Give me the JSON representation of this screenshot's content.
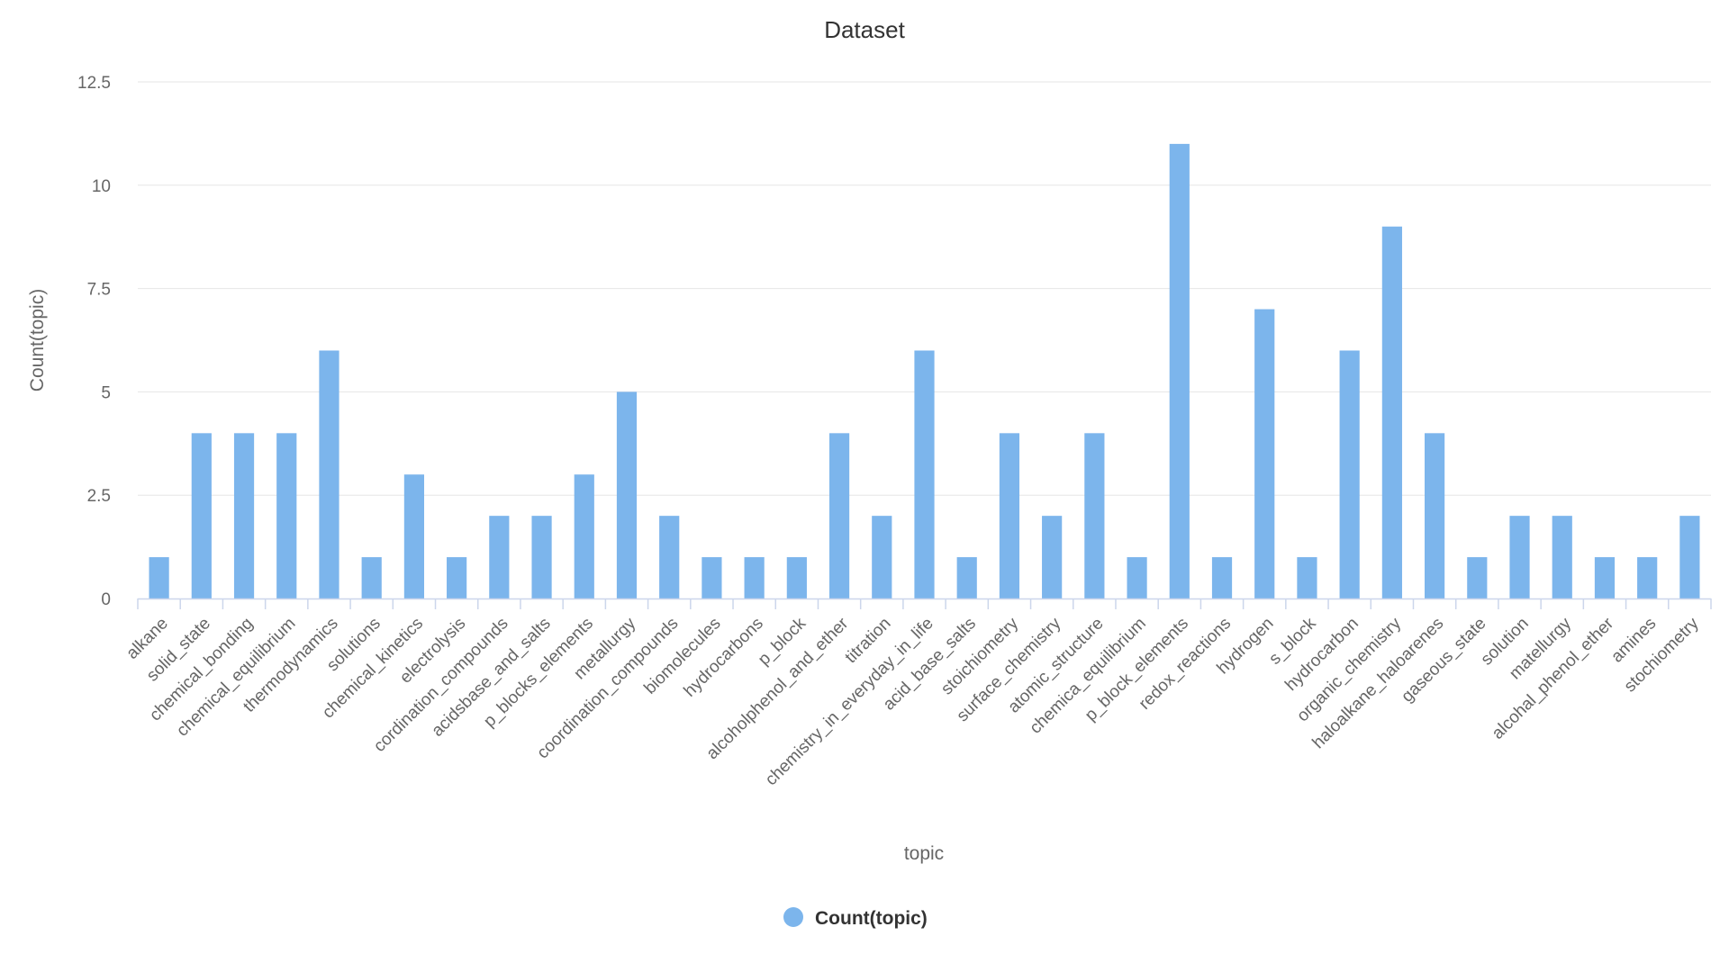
{
  "chart_data": {
    "type": "bar",
    "title": "Dataset",
    "xlabel": "topic",
    "ylabel": "Count(topic)",
    "ylim": [
      0,
      12.5
    ],
    "yticks": [
      0,
      2.5,
      5,
      7.5,
      10,
      12.5
    ],
    "grid": true,
    "legend_position": "bottom-center",
    "categories": [
      "alkane",
      "solid_state",
      "chemical_bonding",
      "chemical_equilibrium",
      "thermodynamics",
      "solutions",
      "chemical_kinetics",
      "electrolysis",
      "cordination_compounds",
      "acidsbase_and_salts",
      "p_blocks_elements",
      "metallurgy",
      "coordination_compounds",
      "biomolecules",
      "hydrocarbons",
      "p_block",
      "alcoholphenol_and_ether",
      "titration",
      "chemistry_in_everyday_in_life",
      "acid_base_salts",
      "stoichiometry",
      "surface_chemistry",
      "atomic_structure",
      "chemica_equilibrium",
      "p_block_elements",
      "redox_reactions",
      "hydrogen",
      "s_block",
      "hydrocarbon",
      "organic_chemistry",
      "haloalkane_haloarenes",
      "gaseous_state",
      "solution",
      "matellurgy",
      "alcohal_phenol_ether",
      "amines",
      "stochiometry"
    ],
    "series": [
      {
        "name": "Count(topic)",
        "color": "#7cb5ec",
        "values": [
          1,
          4,
          4,
          4,
          6,
          1,
          3,
          1,
          2,
          2,
          3,
          5,
          2,
          1,
          1,
          1,
          4,
          2,
          6,
          1,
          4,
          2,
          4,
          1,
          11,
          1,
          7,
          1,
          6,
          9,
          4,
          1,
          2,
          2,
          1,
          1,
          2
        ]
      }
    ]
  },
  "colors": {
    "grid": "#e6e6e6",
    "axis": "#ccd6eb"
  }
}
